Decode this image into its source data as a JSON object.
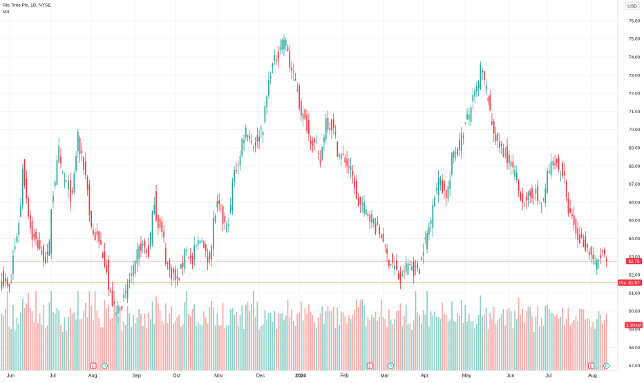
{
  "header": {
    "title": "Rio Tinto Plc, 1D, NYSE",
    "vol_label": "Vol"
  },
  "currency_button": "USD",
  "price_axis": {
    "ticks": [
      "76.00",
      "75.00",
      "74.00",
      "73.00",
      "72.00",
      "71.00",
      "70.00",
      "69.00",
      "68.00",
      "67.00",
      "66.00",
      "65.00",
      "64.00",
      "63.00",
      "62.00",
      "61.00",
      "60.00",
      "59.00",
      "58.00",
      "57.00"
    ]
  },
  "time_axis": {
    "labels": [
      "Jun",
      "Jul",
      "Aug",
      "Sep",
      "Oct",
      "Nov",
      "Dec",
      "2024",
      "Feb",
      "Mar",
      "Apr",
      "May",
      "Jun",
      "Jul",
      "Aug"
    ]
  },
  "badges": {
    "last": {
      "text": "62.75",
      "color": "#f23645"
    },
    "pre_label": "Pre",
    "pre_value": "61.57",
    "pre_color": "#f23645",
    "volume": {
      "text": "3.304M",
      "color": "#f23645"
    }
  },
  "events": [
    {
      "label": "E",
      "kind": "earnings"
    },
    {
      "label": "D",
      "kind": "dividend"
    },
    {
      "label": "E",
      "kind": "earnings"
    },
    {
      "label": "D",
      "kind": "dividend"
    },
    {
      "label": "E",
      "kind": "earnings"
    },
    {
      "label": "D",
      "kind": "dividend"
    }
  ],
  "colors": {
    "up": "#26a69a",
    "down": "#f23645",
    "up_vol": "#8ccfc6",
    "down_vol": "#f7a9a7",
    "grid": "#f0f3fa"
  },
  "chart_data": {
    "type": "candlestick",
    "symbol": "Rio Tinto Plc",
    "interval": "1D",
    "exchange": "NYSE",
    "currency": "USD",
    "ylim": [
      56.6,
      76.4
    ],
    "x_labels": [
      "Jun",
      "Jul",
      "Aug",
      "Sep",
      "Oct",
      "Nov",
      "Dec",
      "2024",
      "Feb",
      "Mar",
      "Apr",
      "May",
      "Jun",
      "Jul",
      "Aug"
    ],
    "close_path": [
      [
        "2023-05-26",
        62.0
      ],
      [
        "2023-06-01",
        61.2
      ],
      [
        "2023-06-06",
        63.5
      ],
      [
        "2023-06-12",
        68.0
      ],
      [
        "2023-06-16",
        64.6
      ],
      [
        "2023-06-23",
        63.5
      ],
      [
        "2023-06-29",
        62.8
      ],
      [
        "2023-07-07",
        68.8
      ],
      [
        "2023-07-12",
        67.2
      ],
      [
        "2023-07-18",
        66.2
      ],
      [
        "2023-07-21",
        69.8
      ],
      [
        "2023-07-26",
        68.0
      ],
      [
        "2023-08-02",
        64.2
      ],
      [
        "2023-08-08",
        63.6
      ],
      [
        "2023-08-14",
        61.2
      ],
      [
        "2023-08-18",
        59.8
      ],
      [
        "2023-08-24",
        60.6
      ],
      [
        "2023-08-31",
        62.2
      ],
      [
        "2023-09-06",
        63.6
      ],
      [
        "2023-09-12",
        63.2
      ],
      [
        "2023-09-15",
        66.2
      ],
      [
        "2023-09-21",
        64.2
      ],
      [
        "2023-09-27",
        62.2
      ],
      [
        "2023-10-03",
        61.6
      ],
      [
        "2023-10-09",
        63.6
      ],
      [
        "2023-10-13",
        62.6
      ],
      [
        "2023-10-20",
        64.2
      ],
      [
        "2023-10-25",
        62.8
      ],
      [
        "2023-11-01",
        65.8
      ],
      [
        "2023-11-08",
        64.6
      ],
      [
        "2023-11-14",
        67.6
      ],
      [
        "2023-11-22",
        70.0
      ],
      [
        "2023-11-28",
        69.2
      ],
      [
        "2023-12-05",
        70.2
      ],
      [
        "2023-12-08",
        72.6
      ],
      [
        "2023-12-15",
        74.2
      ],
      [
        "2023-12-20",
        75.0
      ],
      [
        "2023-12-28",
        72.6
      ],
      [
        "2024-01-04",
        70.4
      ],
      [
        "2024-01-10",
        69.4
      ],
      [
        "2024-01-16",
        68.2
      ],
      [
        "2024-01-19",
        70.6
      ],
      [
        "2024-01-24",
        70.2
      ],
      [
        "2024-01-30",
        68.6
      ],
      [
        "2024-02-06",
        68.0
      ],
      [
        "2024-02-12",
        66.0
      ],
      [
        "2024-02-20",
        65.4
      ],
      [
        "2024-02-26",
        64.6
      ],
      [
        "2024-03-01",
        64.0
      ],
      [
        "2024-03-06",
        62.8
      ],
      [
        "2024-03-11",
        62.4
      ],
      [
        "2024-03-14",
        61.6
      ],
      [
        "2024-03-20",
        62.6
      ],
      [
        "2024-03-26",
        62.2
      ],
      [
        "2024-04-02",
        63.8
      ],
      [
        "2024-04-08",
        66.2
      ],
      [
        "2024-04-12",
        67.4
      ],
      [
        "2024-04-17",
        66.4
      ],
      [
        "2024-04-23",
        68.8
      ],
      [
        "2024-04-29",
        69.6
      ],
      [
        "2024-05-02",
        70.6
      ],
      [
        "2024-05-07",
        71.6
      ],
      [
        "2024-05-13",
        73.4
      ],
      [
        "2024-05-17",
        71.8
      ],
      [
        "2024-05-23",
        69.6
      ],
      [
        "2024-05-29",
        68.8
      ],
      [
        "2024-06-04",
        68.0
      ],
      [
        "2024-06-10",
        66.6
      ],
      [
        "2024-06-14",
        65.8
      ],
      [
        "2024-06-20",
        66.6
      ],
      [
        "2024-06-26",
        65.8
      ],
      [
        "2024-07-01",
        67.6
      ],
      [
        "2024-07-05",
        68.4
      ],
      [
        "2024-07-11",
        67.6
      ],
      [
        "2024-07-17",
        65.2
      ],
      [
        "2024-07-23",
        64.0
      ],
      [
        "2024-07-29",
        63.6
      ],
      [
        "2024-08-05",
        62.4
      ],
      [
        "2024-08-09",
        63.2
      ],
      [
        "2024-08-13",
        62.75
      ]
    ],
    "last_close": 62.75,
    "premarket": 61.57,
    "last_volume": "3.304M"
  }
}
